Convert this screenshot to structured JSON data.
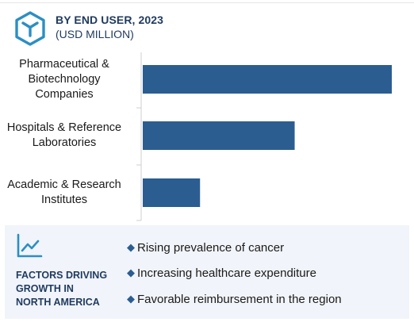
{
  "header": {
    "title": "BY END USER, 2023",
    "subtitle": "(USD MILLION)",
    "logo_icon": "cube-hexagon-icon",
    "accent_color": "#2b8fc4"
  },
  "chart_data": {
    "type": "bar",
    "orientation": "horizontal",
    "categories": [
      "Pharmaceutical &\nBiotechnology\nCompanies",
      "Hospitals & Reference\nLaboratories",
      "Academic & Research\nInstitutes"
    ],
    "values": [
      100,
      61,
      23
    ],
    "title": "BY END USER, 2023",
    "subtitle": "(USD MILLION)",
    "xlabel": "",
    "ylabel": "",
    "xlim": [
      0,
      100
    ],
    "grid": false,
    "legend": "none",
    "bar_color": "#2b5d91"
  },
  "factors": {
    "icon": "line-chart-icon",
    "title": "FACTORS DRIVING\nGROWTH IN\nNORTH AMERICA",
    "bullet": "◆",
    "items": [
      "Rising prevalence of cancer",
      "Increasing healthcare expenditure",
      "Favorable reimbursement in the region"
    ],
    "panel_color": "#f1f4fa"
  }
}
